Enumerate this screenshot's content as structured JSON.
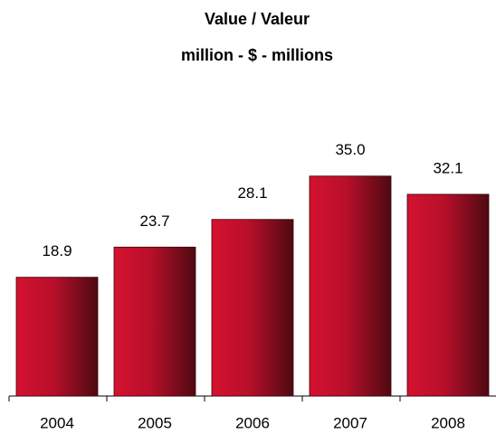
{
  "chart_data": {
    "type": "bar",
    "title": "Value / Valeur",
    "subtitle": "million - $ - millions",
    "categories": [
      "2004",
      "2005",
      "2006",
      "2007",
      "2008"
    ],
    "values": [
      18.9,
      23.7,
      28.1,
      35.0,
      32.1
    ],
    "value_labels": [
      "18.9",
      "23.7",
      "28.1",
      "35.0",
      "32.1"
    ],
    "color": "#c8102e",
    "ylim": [
      0,
      40
    ]
  }
}
